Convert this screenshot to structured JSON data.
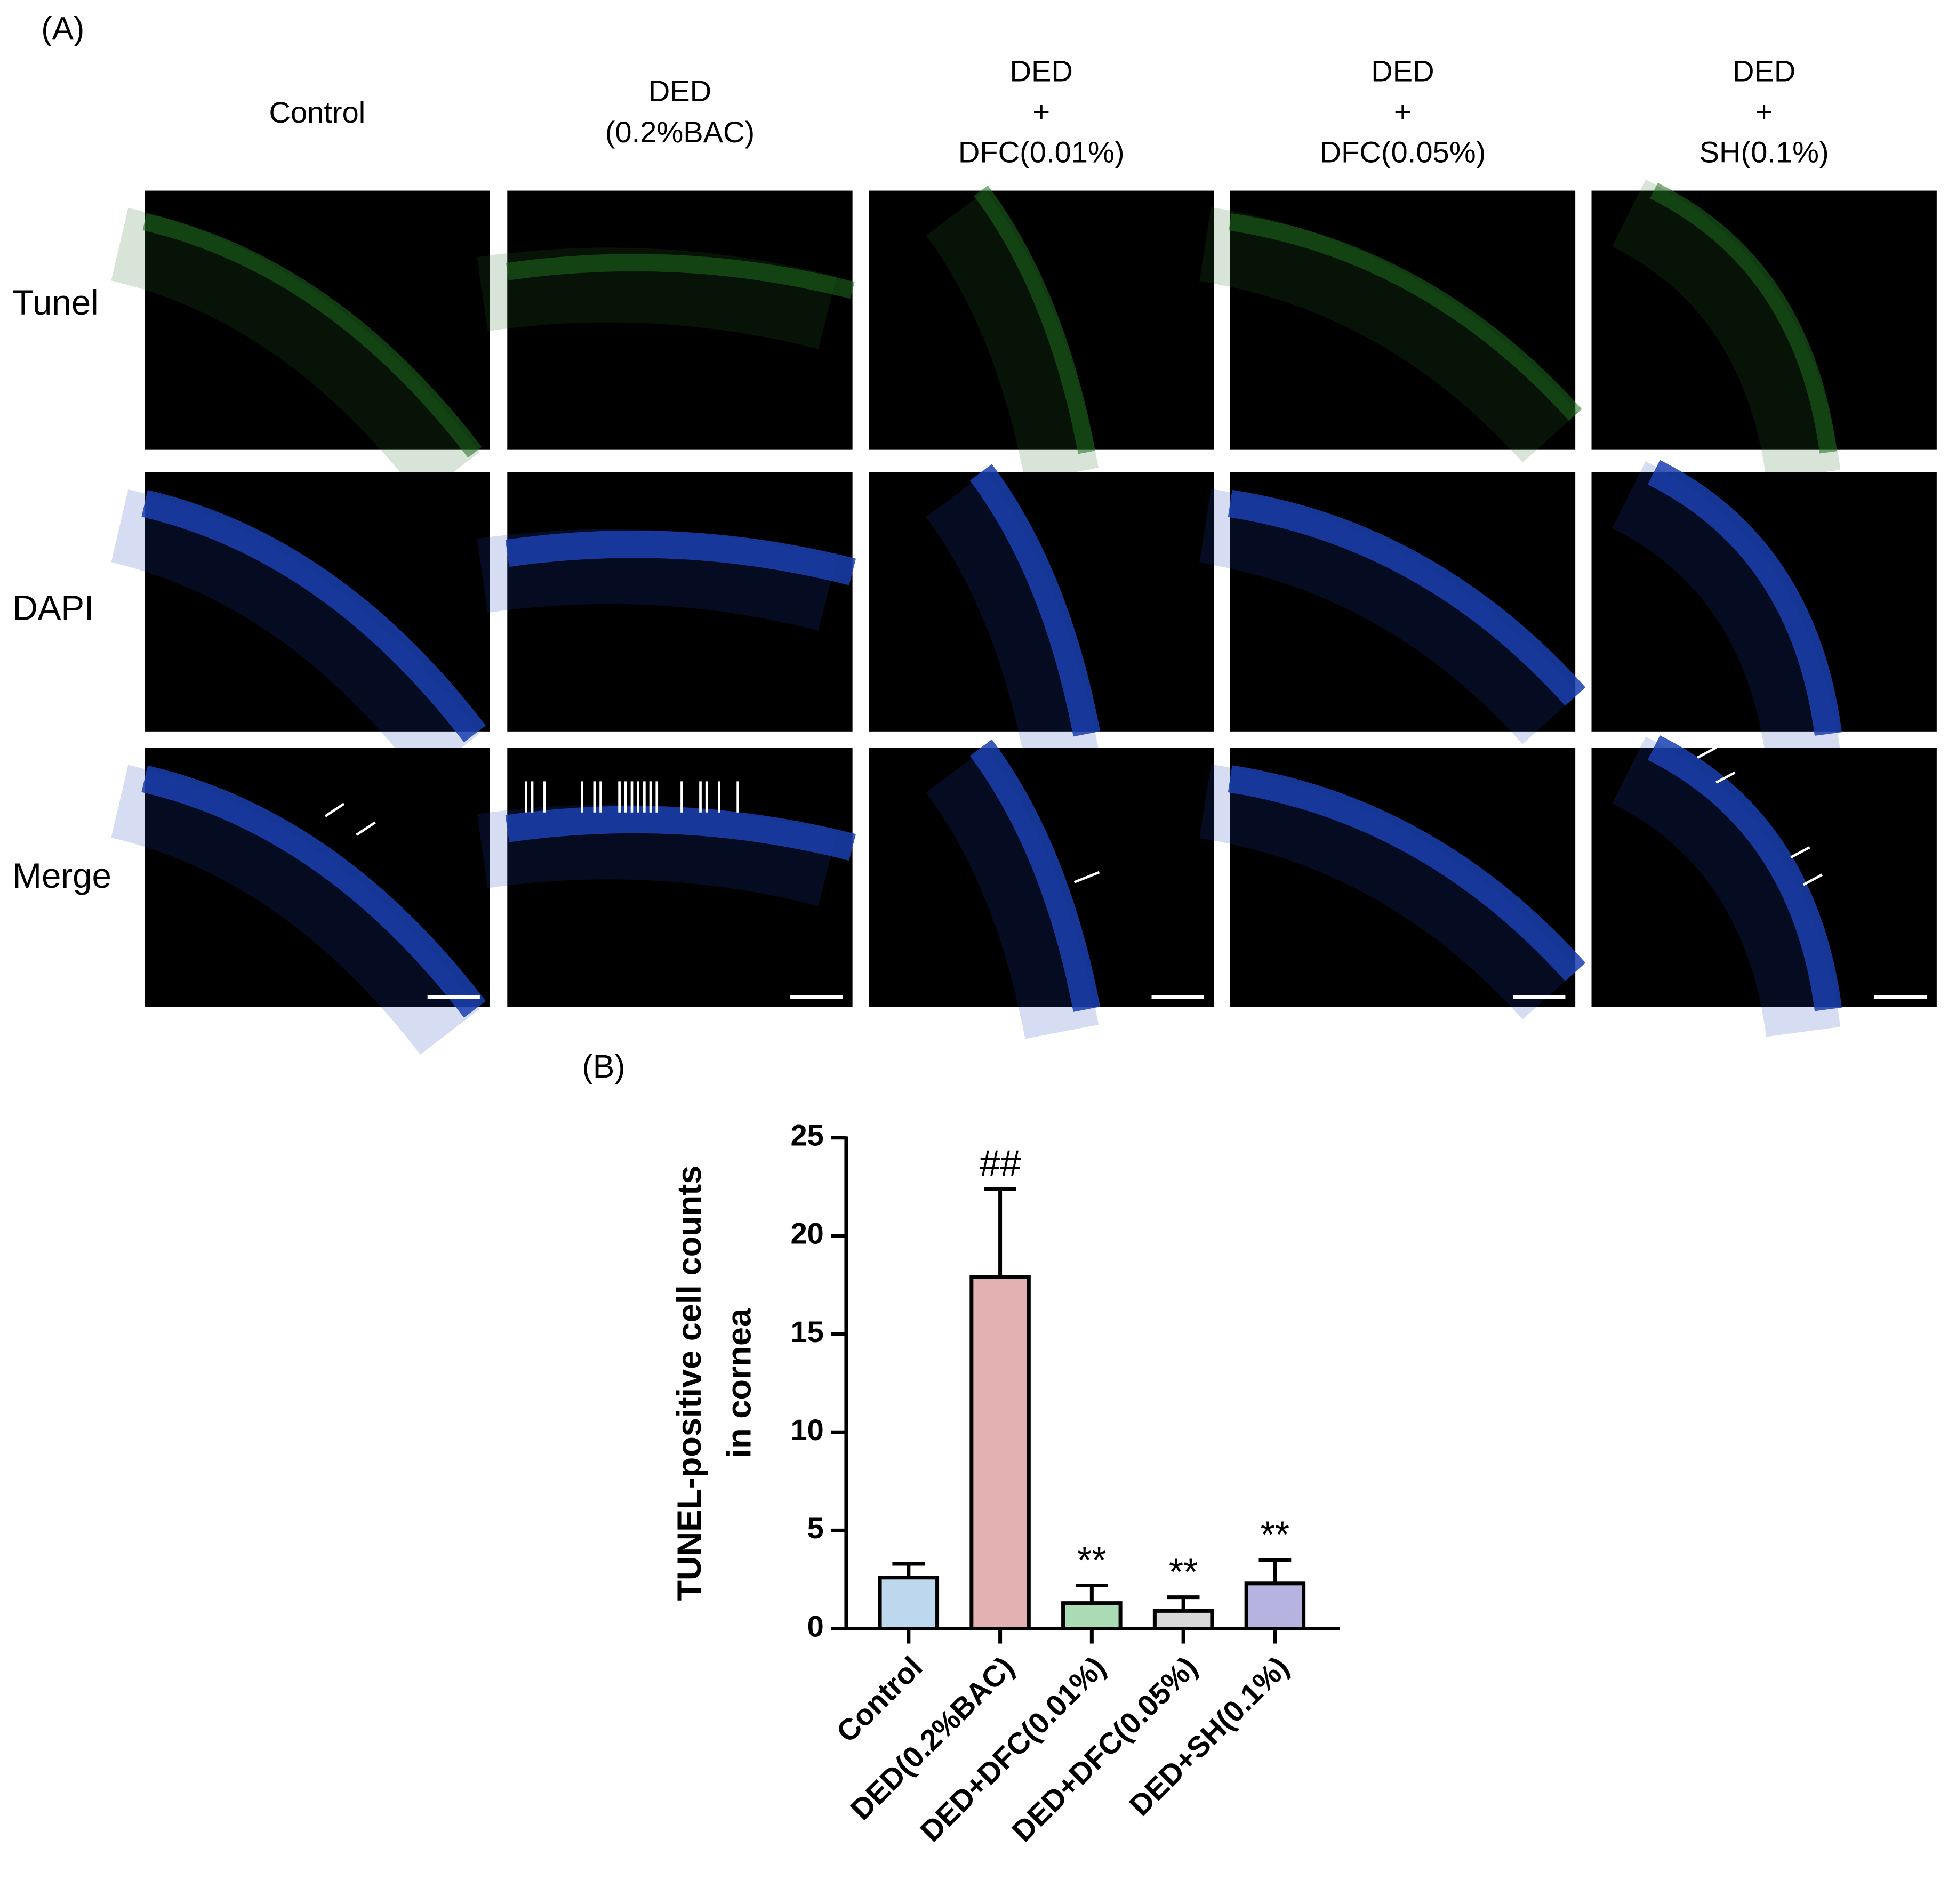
{
  "panel_a": {
    "label": "(A)",
    "columns": [
      [
        "Control"
      ],
      [
        "DED",
        "(0.2%BAC)"
      ],
      [
        "DED",
        "+",
        "DFC(0.01%)"
      ],
      [
        "DED",
        "+",
        "DFC(0.05%)"
      ],
      [
        "DED",
        "+",
        "SH(0.1%)"
      ]
    ],
    "rows": [
      "Tunel",
      "DAPI",
      "Merge"
    ]
  },
  "chart_data": {
    "type": "bar",
    "label": "(B)",
    "ylabel": [
      "TUNEL-positive cell counts",
      "in cornea"
    ],
    "categories": [
      "Control",
      "DED(0.2%BAC)",
      "DED+DFC(0.01%)",
      "DED+DFC(0.05%)",
      "DED+SH(0.1%)"
    ],
    "values": [
      2.6,
      17.9,
      1.3,
      0.9,
      2.3
    ],
    "errors": [
      0.7,
      4.5,
      0.9,
      0.7,
      1.2
    ],
    "annotations": [
      null,
      "##",
      "**",
      "**",
      "**"
    ],
    "colors": [
      "#bdd7ee",
      "#e3b1b1",
      "#a9dbb4",
      "#d9d9d9",
      "#b7b3e0"
    ],
    "ylim": [
      0,
      25
    ],
    "yticks": [
      0,
      5,
      10,
      15,
      20,
      25
    ]
  }
}
